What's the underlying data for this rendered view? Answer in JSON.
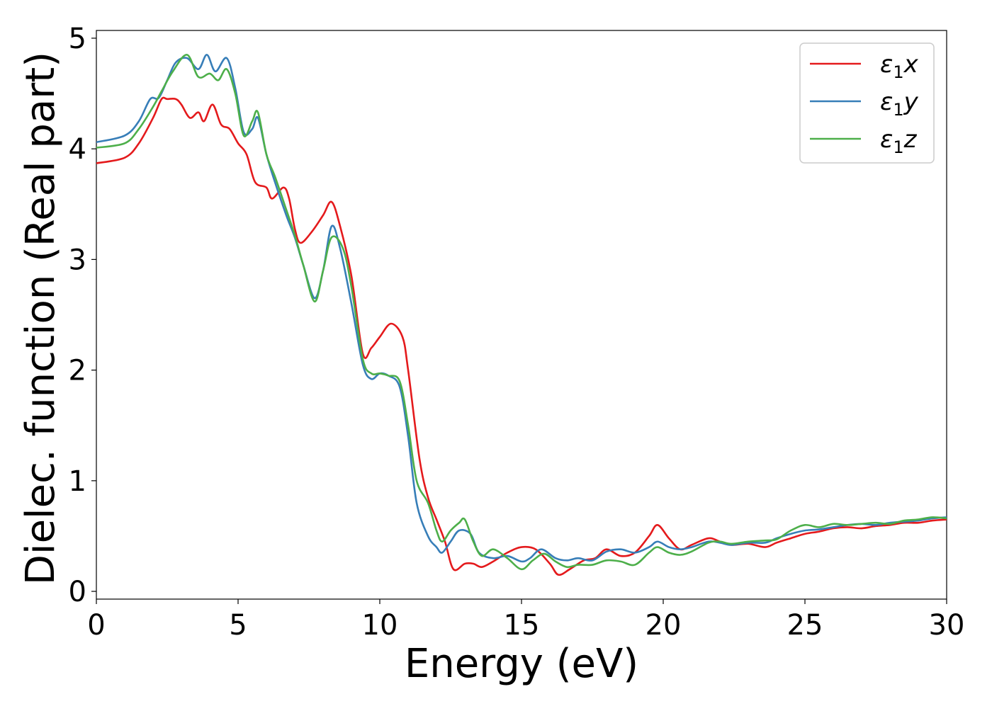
{
  "chart_data": {
    "type": "line",
    "title": "",
    "xlabel": "Energy (eV)",
    "ylabel": "Dielec. function (Real part)",
    "xlim": [
      0,
      30
    ],
    "ylim": [
      -0.07,
      5.07
    ],
    "xticks": [
      0,
      5,
      10,
      15,
      20,
      25,
      30
    ],
    "yticks": [
      0,
      1,
      2,
      3,
      4,
      5
    ],
    "grid": false,
    "legend_position": "top-right",
    "series": [
      {
        "name": "ε₁x",
        "legend_symbol": "ε",
        "legend_subscript": "1",
        "legend_var": "x",
        "color": "#e41a1c",
        "points": [
          [
            0,
            3.87
          ],
          [
            1,
            3.92
          ],
          [
            1.5,
            4.05
          ],
          [
            2,
            4.28
          ],
          [
            2.3,
            4.45
          ],
          [
            2.5,
            4.45
          ],
          [
            2.8,
            4.45
          ],
          [
            3,
            4.4
          ],
          [
            3.3,
            4.28
          ],
          [
            3.6,
            4.33
          ],
          [
            3.8,
            4.25
          ],
          [
            4.1,
            4.4
          ],
          [
            4.4,
            4.22
          ],
          [
            4.7,
            4.18
          ],
          [
            5,
            4.05
          ],
          [
            5.3,
            3.95
          ],
          [
            5.6,
            3.7
          ],
          [
            6,
            3.65
          ],
          [
            6.2,
            3.55
          ],
          [
            6.6,
            3.65
          ],
          [
            6.8,
            3.55
          ],
          [
            7,
            3.28
          ],
          [
            7.2,
            3.15
          ],
          [
            7.6,
            3.25
          ],
          [
            8,
            3.4
          ],
          [
            8.3,
            3.52
          ],
          [
            8.6,
            3.3
          ],
          [
            9,
            2.85
          ],
          [
            9.4,
            2.15
          ],
          [
            9.7,
            2.2
          ],
          [
            10,
            2.3
          ],
          [
            10.4,
            2.42
          ],
          [
            10.8,
            2.3
          ],
          [
            11,
            2.0
          ],
          [
            11.4,
            1.2
          ],
          [
            11.7,
            0.85
          ],
          [
            12,
            0.65
          ],
          [
            12.3,
            0.45
          ],
          [
            12.6,
            0.2
          ],
          [
            13,
            0.25
          ],
          [
            13.3,
            0.25
          ],
          [
            13.6,
            0.22
          ],
          [
            14,
            0.27
          ],
          [
            14.5,
            0.35
          ],
          [
            15,
            0.4
          ],
          [
            15.5,
            0.38
          ],
          [
            16,
            0.25
          ],
          [
            16.3,
            0.15
          ],
          [
            16.7,
            0.2
          ],
          [
            17.2,
            0.28
          ],
          [
            17.6,
            0.3
          ],
          [
            18,
            0.38
          ],
          [
            18.5,
            0.32
          ],
          [
            19,
            0.35
          ],
          [
            19.5,
            0.5
          ],
          [
            19.8,
            0.6
          ],
          [
            20.2,
            0.48
          ],
          [
            20.6,
            0.38
          ],
          [
            21,
            0.42
          ],
          [
            21.6,
            0.48
          ],
          [
            22,
            0.45
          ],
          [
            22.4,
            0.42
          ],
          [
            23,
            0.43
          ],
          [
            23.6,
            0.4
          ],
          [
            24,
            0.44
          ],
          [
            24.5,
            0.48
          ],
          [
            25,
            0.52
          ],
          [
            25.5,
            0.54
          ],
          [
            26,
            0.57
          ],
          [
            26.5,
            0.58
          ],
          [
            27,
            0.57
          ],
          [
            27.5,
            0.59
          ],
          [
            28,
            0.6
          ],
          [
            28.5,
            0.62
          ],
          [
            29,
            0.62
          ],
          [
            29.5,
            0.64
          ],
          [
            30,
            0.65
          ]
        ]
      },
      {
        "name": "ε₁y",
        "legend_symbol": "ε",
        "legend_subscript": "1",
        "legend_var": "y",
        "color": "#377eb8",
        "points": [
          [
            0,
            4.06
          ],
          [
            1,
            4.12
          ],
          [
            1.5,
            4.25
          ],
          [
            1.9,
            4.45
          ],
          [
            2.2,
            4.46
          ],
          [
            2.5,
            4.62
          ],
          [
            2.8,
            4.78
          ],
          [
            3.2,
            4.82
          ],
          [
            3.6,
            4.72
          ],
          [
            3.9,
            4.85
          ],
          [
            4.2,
            4.7
          ],
          [
            4.6,
            4.82
          ],
          [
            4.9,
            4.55
          ],
          [
            5.2,
            4.15
          ],
          [
            5.5,
            4.18
          ],
          [
            5.7,
            4.28
          ],
          [
            6,
            3.95
          ],
          [
            6.3,
            3.7
          ],
          [
            6.7,
            3.4
          ],
          [
            7,
            3.2
          ],
          [
            7.3,
            2.95
          ],
          [
            7.7,
            2.65
          ],
          [
            8,
            2.9
          ],
          [
            8.3,
            3.3
          ],
          [
            8.6,
            3.1
          ],
          [
            9,
            2.6
          ],
          [
            9.4,
            2.05
          ],
          [
            9.7,
            1.92
          ],
          [
            10,
            1.97
          ],
          [
            10.3,
            1.95
          ],
          [
            10.7,
            1.85
          ],
          [
            11,
            1.4
          ],
          [
            11.3,
            0.8
          ],
          [
            11.7,
            0.5
          ],
          [
            12,
            0.4
          ],
          [
            12.2,
            0.35
          ],
          [
            12.5,
            0.45
          ],
          [
            12.8,
            0.55
          ],
          [
            13.2,
            0.52
          ],
          [
            13.5,
            0.35
          ],
          [
            14,
            0.3
          ],
          [
            14.5,
            0.32
          ],
          [
            15,
            0.27
          ],
          [
            15.3,
            0.3
          ],
          [
            15.7,
            0.38
          ],
          [
            16.2,
            0.3
          ],
          [
            16.6,
            0.28
          ],
          [
            17,
            0.3
          ],
          [
            17.5,
            0.28
          ],
          [
            18,
            0.36
          ],
          [
            18.5,
            0.38
          ],
          [
            19,
            0.35
          ],
          [
            19.5,
            0.4
          ],
          [
            19.8,
            0.45
          ],
          [
            20.2,
            0.4
          ],
          [
            20.6,
            0.38
          ],
          [
            21,
            0.4
          ],
          [
            21.6,
            0.45
          ],
          [
            22,
            0.44
          ],
          [
            22.4,
            0.42
          ],
          [
            23,
            0.44
          ],
          [
            23.6,
            0.44
          ],
          [
            24,
            0.48
          ],
          [
            24.5,
            0.52
          ],
          [
            25,
            0.55
          ],
          [
            25.5,
            0.56
          ],
          [
            26,
            0.58
          ],
          [
            26.5,
            0.6
          ],
          [
            27,
            0.61
          ],
          [
            27.5,
            0.6
          ],
          [
            28,
            0.62
          ],
          [
            28.5,
            0.63
          ],
          [
            29,
            0.64
          ],
          [
            29.5,
            0.66
          ],
          [
            30,
            0.67
          ]
        ]
      },
      {
        "name": "ε₁z",
        "legend_symbol": "ε",
        "legend_subscript": "1",
        "legend_var": "z",
        "color": "#4daf4a",
        "points": [
          [
            0,
            4.01
          ],
          [
            1,
            4.05
          ],
          [
            1.5,
            4.18
          ],
          [
            2,
            4.38
          ],
          [
            2.3,
            4.52
          ],
          [
            2.7,
            4.7
          ],
          [
            3.2,
            4.85
          ],
          [
            3.6,
            4.65
          ],
          [
            4,
            4.68
          ],
          [
            4.3,
            4.62
          ],
          [
            4.6,
            4.72
          ],
          [
            4.9,
            4.5
          ],
          [
            5.2,
            4.12
          ],
          [
            5.5,
            4.25
          ],
          [
            5.7,
            4.33
          ],
          [
            6,
            3.95
          ],
          [
            6.3,
            3.75
          ],
          [
            6.7,
            3.45
          ],
          [
            7,
            3.22
          ],
          [
            7.3,
            2.95
          ],
          [
            7.7,
            2.62
          ],
          [
            8,
            2.9
          ],
          [
            8.3,
            3.2
          ],
          [
            8.7,
            3.1
          ],
          [
            9,
            2.75
          ],
          [
            9.4,
            2.1
          ],
          [
            9.7,
            1.97
          ],
          [
            10,
            1.97
          ],
          [
            10.3,
            1.95
          ],
          [
            10.7,
            1.9
          ],
          [
            11,
            1.5
          ],
          [
            11.3,
            1.0
          ],
          [
            11.7,
            0.8
          ],
          [
            12,
            0.55
          ],
          [
            12.2,
            0.45
          ],
          [
            12.5,
            0.55
          ],
          [
            12.8,
            0.62
          ],
          [
            13,
            0.65
          ],
          [
            13.3,
            0.45
          ],
          [
            13.6,
            0.32
          ],
          [
            14,
            0.38
          ],
          [
            14.5,
            0.3
          ],
          [
            15,
            0.2
          ],
          [
            15.4,
            0.28
          ],
          [
            15.8,
            0.34
          ],
          [
            16.2,
            0.27
          ],
          [
            16.6,
            0.22
          ],
          [
            17,
            0.24
          ],
          [
            17.5,
            0.24
          ],
          [
            18,
            0.28
          ],
          [
            18.5,
            0.27
          ],
          [
            19,
            0.24
          ],
          [
            19.5,
            0.35
          ],
          [
            19.8,
            0.4
          ],
          [
            20.2,
            0.35
          ],
          [
            20.6,
            0.33
          ],
          [
            21,
            0.36
          ],
          [
            21.6,
            0.44
          ],
          [
            22,
            0.45
          ],
          [
            22.4,
            0.43
          ],
          [
            23,
            0.45
          ],
          [
            23.6,
            0.46
          ],
          [
            24,
            0.47
          ],
          [
            24.5,
            0.55
          ],
          [
            25,
            0.6
          ],
          [
            25.5,
            0.58
          ],
          [
            26,
            0.61
          ],
          [
            26.5,
            0.6
          ],
          [
            27,
            0.61
          ],
          [
            27.5,
            0.62
          ],
          [
            28,
            0.61
          ],
          [
            28.5,
            0.64
          ],
          [
            29,
            0.65
          ],
          [
            29.5,
            0.67
          ],
          [
            30,
            0.66
          ]
        ]
      }
    ]
  }
}
